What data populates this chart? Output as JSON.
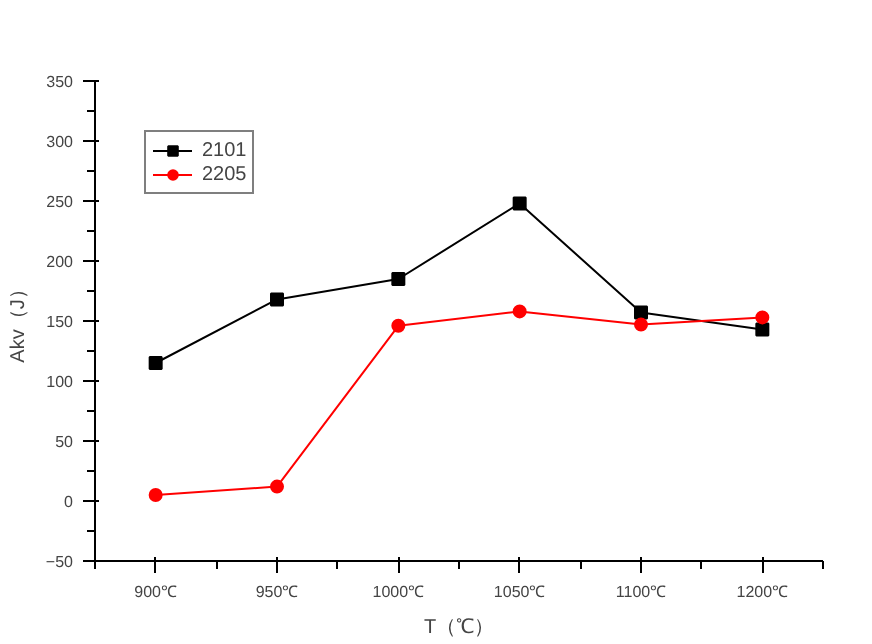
{
  "chart_data": {
    "type": "line",
    "xlabel": "T（℃）",
    "ylabel": "Akv（J）",
    "categories": [
      "900℃",
      "950℃",
      "1000℃",
      "1050℃",
      "1100℃",
      "1200℃"
    ],
    "series": [
      {
        "name": "2101",
        "color": "#000000",
        "marker": "square",
        "values": [
          115,
          168,
          185,
          248,
          157,
          143
        ]
      },
      {
        "name": "2205",
        "color": "#ff0000",
        "marker": "circle",
        "values": [
          5,
          12,
          146,
          158,
          147,
          153
        ]
      }
    ],
    "ylim": [
      -50,
      350
    ],
    "yticks": [
      -50,
      0,
      50,
      100,
      150,
      200,
      250,
      300,
      350
    ],
    "grid": false,
    "legend": "top left"
  }
}
